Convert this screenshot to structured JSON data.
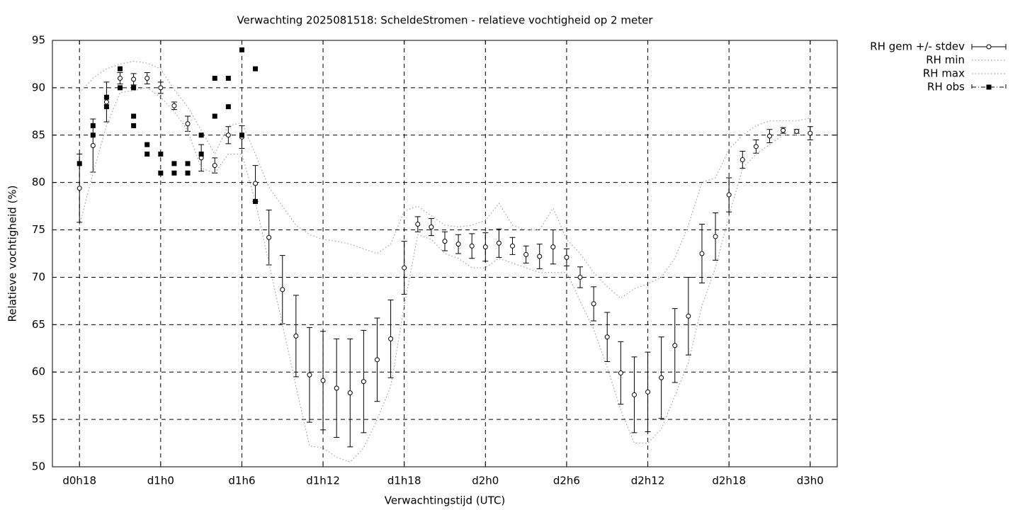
{
  "chart_data": {
    "type": "errorbar",
    "title": "Verwachting 2025081518: ScheldeStromen - relatieve vochtigheid op 2 meter",
    "x_label": "Verwachtingstijd (UTC)",
    "y_label": "Relatieve vochtigheid (%)",
    "xlim": [
      16,
      74
    ],
    "ylim": [
      50,
      95
    ],
    "xticks": [
      {
        "value": 18,
        "label": "d0h18"
      },
      {
        "value": 24,
        "label": "d1h0"
      },
      {
        "value": 30,
        "label": "d1h6"
      },
      {
        "value": 36,
        "label": "d1h12"
      },
      {
        "value": 42,
        "label": "d1h18"
      },
      {
        "value": 48,
        "label": "d2h0"
      },
      {
        "value": 54,
        "label": "d2h6"
      },
      {
        "value": 60,
        "label": "d2h12"
      },
      {
        "value": 66,
        "label": "d2h18"
      },
      {
        "value": 72,
        "label": "d3h0"
      }
    ],
    "yticks": [
      50,
      55,
      60,
      65,
      70,
      75,
      80,
      85,
      90,
      95
    ],
    "grid": true,
    "legend": "outside-top-right",
    "x": [
      18,
      19,
      20,
      21,
      22,
      23,
      24,
      25,
      26,
      27,
      28,
      29,
      30,
      31,
      32,
      33,
      34,
      35,
      36,
      37,
      38,
      39,
      40,
      41,
      42,
      43,
      44,
      45,
      46,
      47,
      48,
      49,
      50,
      51,
      52,
      53,
      54,
      55,
      56,
      57,
      58,
      59,
      60,
      61,
      62,
      63,
      64,
      65,
      66,
      67,
      68,
      69,
      70,
      71,
      72
    ],
    "series": [
      {
        "name": "RH gem +/- stdev",
        "style": "errorbar",
        "color": "#000000",
        "values": [
          79.4,
          83.9,
          88.5,
          91.0,
          90.9,
          91.0,
          90.0,
          88.1,
          86.2,
          82.6,
          81.8,
          85.0,
          84.8,
          79.9,
          74.2,
          68.7,
          63.8,
          59.7,
          59.1,
          58.3,
          57.8,
          59.0,
          61.3,
          63.5,
          71.0,
          75.6,
          75.3,
          73.8,
          73.5,
          73.3,
          73.2,
          73.6,
          73.3,
          72.4,
          72.2,
          73.2,
          72.1,
          70.0,
          67.2,
          63.7,
          59.9,
          57.6,
          57.9,
          59.4,
          62.8,
          65.9,
          72.5,
          74.3,
          78.7,
          82.4,
          83.8,
          84.9,
          85.5,
          85.4,
          85.2
        ],
        "errors": [
          3.6,
          2.8,
          2.1,
          0.6,
          0.6,
          0.6,
          0.6,
          0.4,
          0.8,
          1.4,
          0.8,
          0.9,
          1.2,
          1.9,
          2.9,
          3.6,
          4.3,
          5.0,
          5.2,
          5.2,
          5.7,
          5.4,
          4.4,
          4.1,
          2.8,
          0.8,
          0.9,
          1.0,
          1.0,
          1.3,
          1.5,
          1.5,
          0.9,
          0.9,
          1.3,
          1.8,
          0.9,
          1.1,
          1.8,
          2.6,
          3.3,
          4.0,
          4.2,
          4.3,
          3.9,
          4.1,
          3.1,
          2.5,
          1.8,
          0.9,
          0.7,
          0.7,
          0.3,
          0.2,
          0.7
        ]
      },
      {
        "name": "RH min",
        "style": "dotted",
        "color": "#a0a0a0",
        "values": [
          75.5,
          81,
          86,
          89.5,
          89.7,
          90,
          89,
          87.5,
          85.5,
          81.5,
          81,
          83,
          83,
          78,
          71.5,
          65,
          58.5,
          52.2,
          52,
          51,
          50.5,
          52,
          55,
          58.5,
          67,
          74.5,
          74,
          72.5,
          72,
          71,
          71,
          72,
          71.5,
          71,
          70.5,
          70.5,
          70.5,
          67.5,
          64.5,
          60.5,
          56,
          52.5,
          52.5,
          54,
          57.5,
          61,
          67,
          71,
          76.5,
          81.5,
          83,
          84,
          85,
          85,
          85
        ]
      },
      {
        "name": "RH max",
        "style": "dotted",
        "color": "#a0a0a0",
        "values": [
          89.5,
          91,
          92,
          92.5,
          92.8,
          92.6,
          92,
          89.8,
          88,
          85.5,
          83,
          86,
          86.3,
          83,
          79.5,
          77.5,
          75.5,
          74.5,
          74,
          73.8,
          73.5,
          73,
          72.5,
          73.5,
          77,
          77.5,
          76.5,
          75.5,
          75.3,
          75.5,
          76,
          77.8,
          75.5,
          75,
          75,
          77.3,
          74,
          72.5,
          70.5,
          69,
          67.8,
          68.8,
          69.3,
          70,
          72,
          75.5,
          80,
          80.5,
          83.5,
          85,
          86,
          86.5,
          86.5,
          86.5,
          86.8
        ]
      },
      {
        "name": "RH obs",
        "style": "points",
        "color": "#000000",
        "x": [
          18,
          19,
          19,
          20,
          20,
          21,
          21,
          22,
          22,
          22,
          23,
          23,
          24,
          24,
          25,
          25,
          26,
          26,
          27,
          27,
          28,
          28,
          29,
          29,
          30,
          30,
          31,
          31
        ],
        "values": [
          82,
          86,
          85,
          89,
          88,
          92,
          90,
          90,
          87,
          86,
          84,
          83,
          83,
          81,
          82,
          81,
          82,
          81,
          85,
          83,
          91,
          87,
          91,
          88,
          94,
          85,
          92,
          78
        ]
      }
    ]
  }
}
